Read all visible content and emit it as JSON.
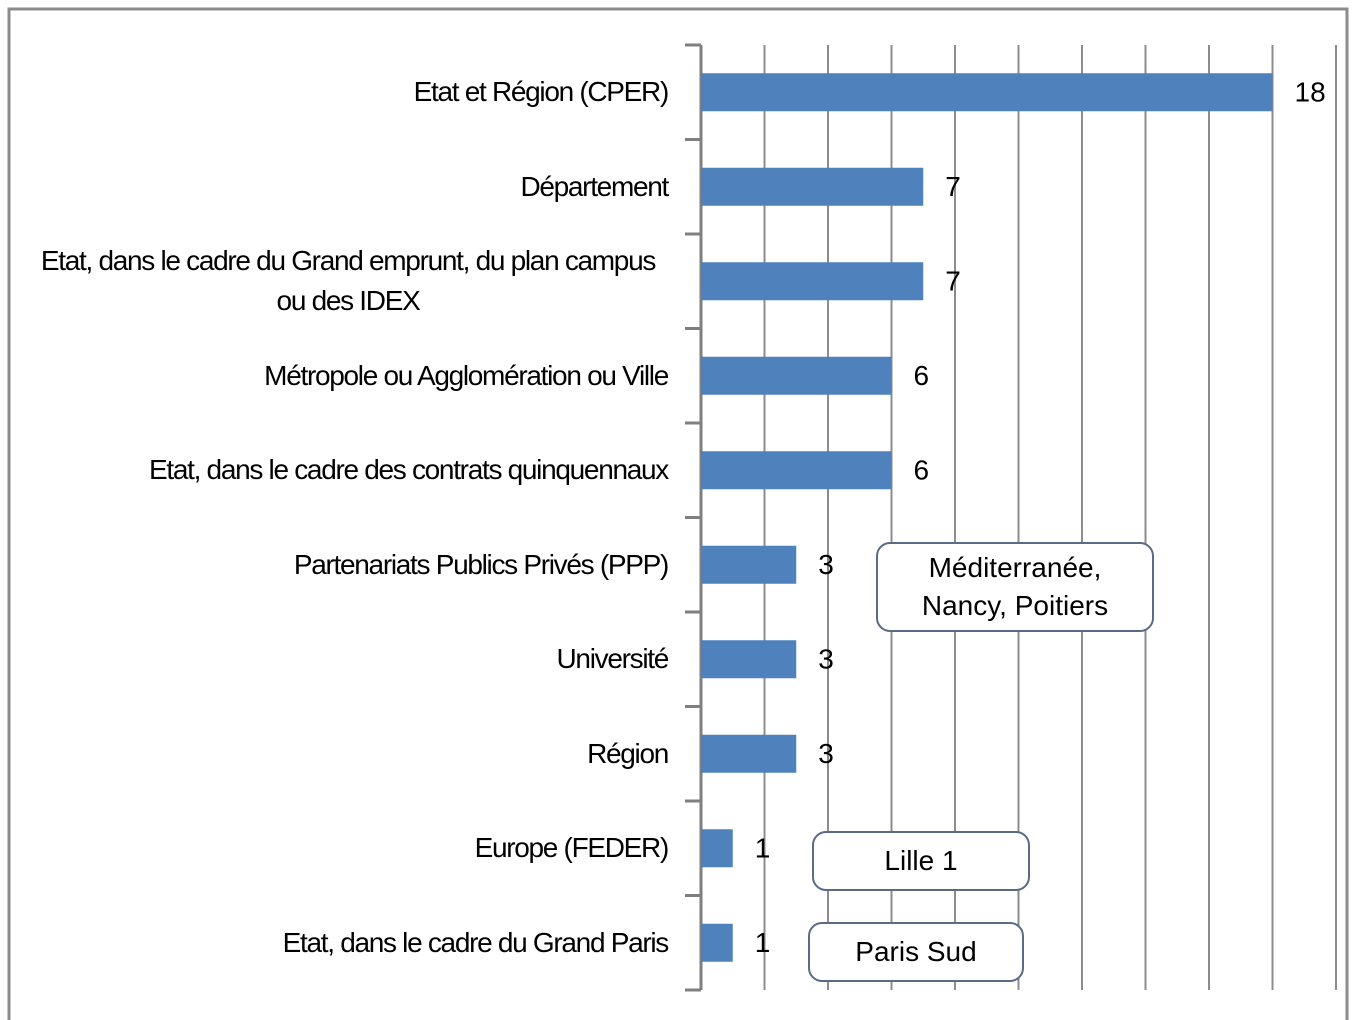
{
  "chart_data": {
    "type": "barh",
    "categories": [
      "Etat et Région (CPER)",
      "Département",
      "Etat, dans le cadre du Grand emprunt, du plan campus ou des IDEX",
      "Métropole ou Agglomération ou Ville",
      "Etat, dans le cadre des contrats quinquennaux",
      "Partenariats Publics Privés (PPP)",
      "Université",
      "Région",
      "Europe (FEDER)",
      "Etat, dans le cadre du Grand Paris"
    ],
    "values": [
      18,
      7,
      7,
      6,
      6,
      3,
      3,
      3,
      1,
      1
    ],
    "color": "#4f81bd",
    "xlim": [
      0,
      20
    ],
    "xticks": [
      0,
      2,
      4,
      6,
      8,
      10,
      12,
      14,
      16,
      18,
      20
    ],
    "grid": true,
    "annotations": [
      "Méditerranée, Nancy, Poitiers",
      "Lille 1",
      "Paris Sud"
    ]
  }
}
